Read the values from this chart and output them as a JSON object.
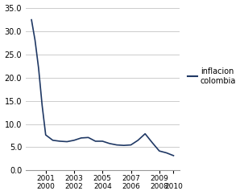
{
  "years": [
    2000,
    2000.25,
    2000.5,
    2000.75,
    2001,
    2001.5,
    2002,
    2002.5,
    2003,
    2003.5,
    2004,
    2004.5,
    2005,
    2005.5,
    2006,
    2006.5,
    2007,
    2007.5,
    2008,
    2008.5,
    2009,
    2009.5,
    2010
  ],
  "values": [
    32.4,
    28.0,
    22.0,
    14.0,
    7.65,
    6.5,
    6.3,
    6.2,
    6.5,
    7.0,
    7.1,
    6.3,
    6.3,
    5.8,
    5.5,
    5.4,
    5.5,
    6.5,
    7.9,
    6.0,
    4.2,
    3.8,
    3.2
  ],
  "line_color": "#1f3864",
  "line_width": 1.2,
  "ylim": [
    0.0,
    35.0
  ],
  "yticks": [
    0.0,
    5.0,
    10.0,
    15.0,
    20.0,
    25.0,
    30.0,
    35.0
  ],
  "xlim_min": 1999.6,
  "xlim_max": 2010.4,
  "xtick_positions": [
    2001,
    2003,
    2005,
    2007,
    2009
  ],
  "xtick_top": [
    "2001",
    "2003",
    "2005",
    "2007",
    "2009"
  ],
  "xtick_bottom": [
    "2000",
    "2002",
    "2004",
    "2006",
    "2008"
  ],
  "xtick_last_pos": 2010,
  "xtick_last_label": "2010",
  "grid_color": "#cccccc",
  "background_color": "#ffffff",
  "legend_label": "inflacion\ncolombia",
  "legend_color": "#1f3864"
}
